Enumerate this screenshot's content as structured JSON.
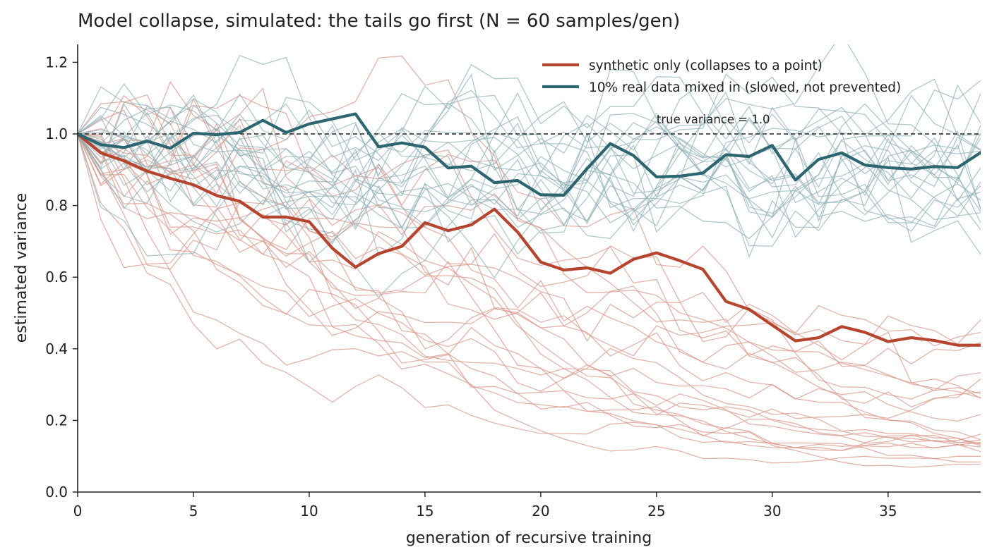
{
  "chart_data": {
    "type": "line",
    "title": "Model collapse, simulated: the tails go first (N = 60 samples/gen)",
    "xlabel": "generation of recursive training",
    "ylabel": "estimated variance",
    "xlim": [
      0,
      39
    ],
    "ylim": [
      0,
      1.25
    ],
    "xticks": [
      0,
      5,
      10,
      15,
      20,
      25,
      30,
      35
    ],
    "yticks": [
      0.0,
      0.2,
      0.4,
      0.6,
      0.8,
      1.0,
      1.2
    ],
    "grid": false,
    "legend_position": "top-right",
    "colors": {
      "synthetic": "#b5452f",
      "mixed": "#2d6670",
      "synthetic_faint": "#d99a8c",
      "mixed_faint": "#8fb0b6",
      "reference": "#222222"
    },
    "reference_line": {
      "y": 1.0,
      "label": "true variance = 1.0"
    },
    "x": [
      0,
      1,
      2,
      3,
      4,
      5,
      6,
      7,
      8,
      9,
      10,
      11,
      12,
      13,
      14,
      15,
      16,
      17,
      18,
      19,
      20,
      21,
      22,
      23,
      24,
      25,
      26,
      27,
      28,
      29,
      30,
      31,
      32,
      33,
      34,
      35,
      36,
      37,
      38,
      39
    ],
    "series": [
      {
        "name": "synthetic only (collapses to a point)",
        "key": "synthetic",
        "values": [
          1.0,
          0.947,
          0.925,
          0.896,
          0.876,
          0.858,
          0.828,
          0.812,
          0.768,
          0.768,
          0.755,
          0.681,
          0.628,
          0.666,
          0.686,
          0.752,
          0.73,
          0.746,
          0.79,
          0.726,
          0.642,
          0.62,
          0.626,
          0.611,
          0.65,
          0.668,
          0.646,
          0.622,
          0.532,
          0.51,
          0.466,
          0.422,
          0.431,
          0.462,
          0.446,
          0.42,
          0.431,
          0.423,
          0.41,
          0.41
        ]
      },
      {
        "name": "10% real data mixed in (slowed, not prevented)",
        "key": "mixed",
        "values": [
          1.0,
          0.97,
          0.962,
          0.98,
          0.96,
          1.002,
          0.998,
          1.004,
          1.038,
          1.004,
          1.028,
          1.042,
          1.056,
          0.964,
          0.975,
          0.963,
          0.905,
          0.91,
          0.864,
          0.87,
          0.83,
          0.829,
          0.903,
          0.973,
          0.94,
          0.88,
          0.882,
          0.891,
          0.942,
          0.937,
          0.968,
          0.871,
          0.929,
          0.947,
          0.913,
          0.906,
          0.902,
          0.909,
          0.906,
          0.948
        ]
      }
    ]
  }
}
